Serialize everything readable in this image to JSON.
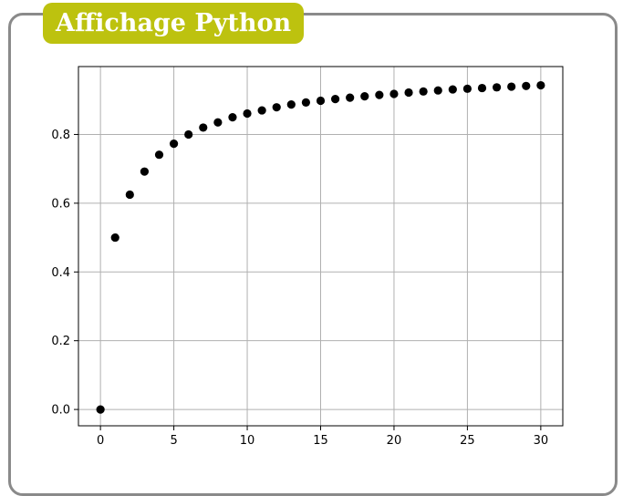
{
  "header": {
    "title": "Affichage Python"
  },
  "colors": {
    "accent": "#bdc20f",
    "frame": "#8a8a8a",
    "points": "#000000",
    "grid": "#b0b0b0"
  },
  "chart_data": {
    "type": "scatter",
    "title": "",
    "xlabel": "",
    "ylabel": "",
    "xlim": [
      -1.5,
      31.5
    ],
    "ylim": [
      -0.0475,
      0.9975
    ],
    "xticks": [
      0,
      5,
      10,
      15,
      20,
      25,
      30
    ],
    "yticks": [
      0.0,
      0.2,
      0.4,
      0.6,
      0.8
    ],
    "xtick_labels": [
      "0",
      "5",
      "10",
      "15",
      "20",
      "25",
      "30"
    ],
    "ytick_labels": [
      "0.0",
      "0.2",
      "0.4",
      "0.6",
      "0.8"
    ],
    "grid": true,
    "series": [
      {
        "x": [
          0,
          1,
          2,
          3,
          4,
          5,
          6,
          7,
          8,
          9,
          10,
          11,
          12,
          13,
          14,
          15,
          16,
          17,
          18,
          19,
          20,
          21,
          22,
          23,
          24,
          25,
          26,
          27,
          28,
          29,
          30
        ],
        "y": [
          0.0,
          0.5,
          0.625,
          0.692,
          0.741,
          0.773,
          0.8,
          0.82,
          0.835,
          0.85,
          0.861,
          0.87,
          0.879,
          0.887,
          0.893,
          0.898,
          0.903,
          0.907,
          0.911,
          0.915,
          0.918,
          0.922,
          0.925,
          0.928,
          0.931,
          0.933,
          0.935,
          0.937,
          0.939,
          0.941,
          0.943
        ]
      }
    ]
  }
}
